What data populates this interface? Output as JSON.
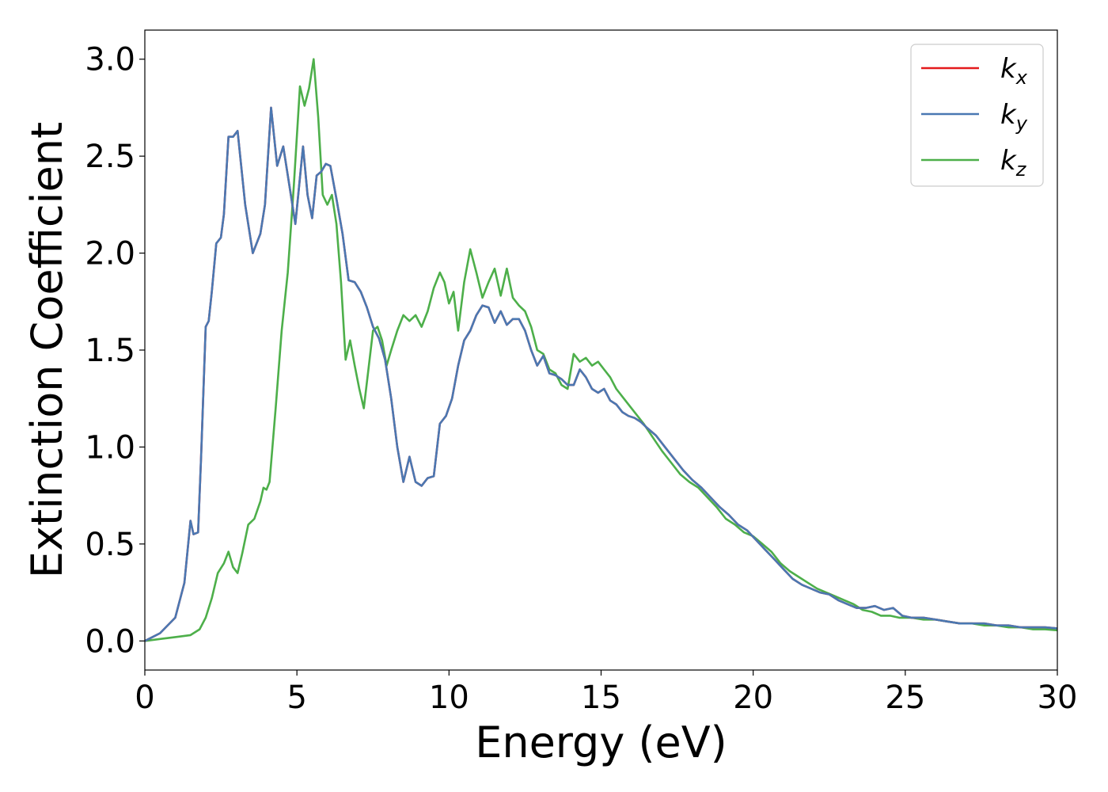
{
  "chart_data": {
    "type": "line",
    "xlabel": "Energy (eV)",
    "ylabel": "Extinction Coefficient",
    "xlim": [
      0,
      30
    ],
    "ylim": [
      -0.15,
      3.15
    ],
    "xticks": [
      0,
      5,
      10,
      15,
      20,
      25,
      30
    ],
    "xtick_labels": [
      "0",
      "5",
      "10",
      "15",
      "20",
      "25",
      "30"
    ],
    "yticks": [
      0.0,
      0.5,
      1.0,
      1.5,
      2.0,
      2.5,
      3.0
    ],
    "ytick_labels": [
      "0.0",
      "0.5",
      "1.0",
      "1.5",
      "2.0",
      "2.5",
      "3.0"
    ],
    "grid": false,
    "legend_position": "top-right",
    "series": [
      {
        "name": "k_x",
        "legend_base": "k",
        "legend_sub": "x",
        "color": "#e41a1c",
        "x": [
          0,
          0.5,
          1.0,
          1.3,
          1.5,
          1.6,
          1.75,
          1.85,
          2.0,
          2.1,
          2.2,
          2.35,
          2.5,
          2.6,
          2.75,
          2.9,
          3.05,
          3.3,
          3.55,
          3.8,
          3.95,
          4.15,
          4.35,
          4.55,
          4.75,
          4.95,
          5.2,
          5.35,
          5.5,
          5.65,
          5.8,
          5.95,
          6.1,
          6.3,
          6.5,
          6.7,
          6.9,
          7.1,
          7.3,
          7.5,
          7.7,
          7.9,
          8.1,
          8.3,
          8.5,
          8.7,
          8.9,
          9.1,
          9.3,
          9.5,
          9.7,
          9.9,
          10.1,
          10.3,
          10.5,
          10.7,
          10.9,
          11.1,
          11.3,
          11.5,
          11.7,
          11.9,
          12.1,
          12.3,
          12.5,
          12.7,
          12.9,
          13.1,
          13.3,
          13.5,
          13.7,
          13.9,
          14.1,
          14.3,
          14.5,
          14.7,
          14.9,
          15.1,
          15.3,
          15.5,
          15.7,
          15.9,
          16.1,
          16.3,
          16.5,
          16.8,
          17.1,
          17.4,
          17.7,
          18.0,
          18.3,
          18.6,
          18.9,
          19.2,
          19.5,
          19.8,
          20.1,
          20.4,
          20.7,
          21.0,
          21.3,
          21.6,
          21.9,
          22.2,
          22.5,
          22.8,
          23.1,
          23.4,
          23.7,
          24.0,
          24.3,
          24.6,
          24.9,
          25.2,
          25.6,
          26.0,
          26.4,
          26.8,
          27.2,
          27.6,
          28.0,
          28.4,
          28.8,
          29.2,
          29.6,
          30.0
        ],
        "y": [
          0,
          0.04,
          0.12,
          0.3,
          0.62,
          0.55,
          0.56,
          0.95,
          1.62,
          1.65,
          1.8,
          2.05,
          2.08,
          2.2,
          2.6,
          2.6,
          2.63,
          2.25,
          2.0,
          2.1,
          2.25,
          2.75,
          2.45,
          2.55,
          2.35,
          2.15,
          2.55,
          2.3,
          2.18,
          2.4,
          2.42,
          2.46,
          2.45,
          2.28,
          2.1,
          1.86,
          1.85,
          1.8,
          1.72,
          1.62,
          1.56,
          1.45,
          1.25,
          1.0,
          0.82,
          0.95,
          0.82,
          0.8,
          0.84,
          0.85,
          1.12,
          1.16,
          1.25,
          1.42,
          1.55,
          1.6,
          1.68,
          1.73,
          1.72,
          1.64,
          1.7,
          1.63,
          1.66,
          1.66,
          1.6,
          1.5,
          1.42,
          1.47,
          1.38,
          1.37,
          1.35,
          1.32,
          1.32,
          1.4,
          1.36,
          1.3,
          1.28,
          1.3,
          1.24,
          1.22,
          1.18,
          1.16,
          1.15,
          1.13,
          1.1,
          1.06,
          1.0,
          0.94,
          0.88,
          0.83,
          0.79,
          0.74,
          0.69,
          0.65,
          0.6,
          0.57,
          0.52,
          0.47,
          0.42,
          0.37,
          0.32,
          0.29,
          0.27,
          0.25,
          0.24,
          0.21,
          0.19,
          0.17,
          0.17,
          0.18,
          0.16,
          0.17,
          0.13,
          0.12,
          0.12,
          0.11,
          0.1,
          0.09,
          0.09,
          0.09,
          0.08,
          0.08,
          0.07,
          0.07,
          0.07,
          0.065
        ]
      },
      {
        "name": "k_y",
        "legend_base": "k",
        "legend_sub": "y",
        "color": "#4a78b2",
        "x": [
          0,
          0.5,
          1.0,
          1.3,
          1.5,
          1.6,
          1.75,
          1.85,
          2.0,
          2.1,
          2.2,
          2.35,
          2.5,
          2.6,
          2.75,
          2.9,
          3.05,
          3.3,
          3.55,
          3.8,
          3.95,
          4.15,
          4.35,
          4.55,
          4.75,
          4.95,
          5.2,
          5.35,
          5.5,
          5.65,
          5.8,
          5.95,
          6.1,
          6.3,
          6.5,
          6.7,
          6.9,
          7.1,
          7.3,
          7.5,
          7.7,
          7.9,
          8.1,
          8.3,
          8.5,
          8.7,
          8.9,
          9.1,
          9.3,
          9.5,
          9.7,
          9.9,
          10.1,
          10.3,
          10.5,
          10.7,
          10.9,
          11.1,
          11.3,
          11.5,
          11.7,
          11.9,
          12.1,
          12.3,
          12.5,
          12.7,
          12.9,
          13.1,
          13.3,
          13.5,
          13.7,
          13.9,
          14.1,
          14.3,
          14.5,
          14.7,
          14.9,
          15.1,
          15.3,
          15.5,
          15.7,
          15.9,
          16.1,
          16.3,
          16.5,
          16.8,
          17.1,
          17.4,
          17.7,
          18.0,
          18.3,
          18.6,
          18.9,
          19.2,
          19.5,
          19.8,
          20.1,
          20.4,
          20.7,
          21.0,
          21.3,
          21.6,
          21.9,
          22.2,
          22.5,
          22.8,
          23.1,
          23.4,
          23.7,
          24.0,
          24.3,
          24.6,
          24.9,
          25.2,
          25.6,
          26.0,
          26.4,
          26.8,
          27.2,
          27.6,
          28.0,
          28.4,
          28.8,
          29.2,
          29.6,
          30.0
        ],
        "y": [
          0,
          0.04,
          0.12,
          0.3,
          0.62,
          0.55,
          0.56,
          0.95,
          1.62,
          1.65,
          1.8,
          2.05,
          2.08,
          2.2,
          2.6,
          2.6,
          2.63,
          2.25,
          2.0,
          2.1,
          2.25,
          2.75,
          2.45,
          2.55,
          2.35,
          2.15,
          2.55,
          2.3,
          2.18,
          2.4,
          2.42,
          2.46,
          2.45,
          2.28,
          2.1,
          1.86,
          1.85,
          1.8,
          1.72,
          1.62,
          1.56,
          1.45,
          1.25,
          1.0,
          0.82,
          0.95,
          0.82,
          0.8,
          0.84,
          0.85,
          1.12,
          1.16,
          1.25,
          1.42,
          1.55,
          1.6,
          1.68,
          1.73,
          1.72,
          1.64,
          1.7,
          1.63,
          1.66,
          1.66,
          1.6,
          1.5,
          1.42,
          1.47,
          1.38,
          1.37,
          1.35,
          1.32,
          1.32,
          1.4,
          1.36,
          1.3,
          1.28,
          1.3,
          1.24,
          1.22,
          1.18,
          1.16,
          1.15,
          1.13,
          1.1,
          1.06,
          1.0,
          0.94,
          0.88,
          0.83,
          0.79,
          0.74,
          0.69,
          0.65,
          0.6,
          0.57,
          0.52,
          0.47,
          0.42,
          0.37,
          0.32,
          0.29,
          0.27,
          0.25,
          0.24,
          0.21,
          0.19,
          0.17,
          0.17,
          0.18,
          0.16,
          0.17,
          0.13,
          0.12,
          0.12,
          0.11,
          0.1,
          0.09,
          0.09,
          0.09,
          0.08,
          0.08,
          0.07,
          0.07,
          0.07,
          0.065
        ]
      },
      {
        "name": "k_z",
        "legend_base": "k",
        "legend_sub": "z",
        "color": "#4daf4a",
        "x": [
          0,
          0.5,
          1.0,
          1.5,
          1.8,
          2.0,
          2.2,
          2.4,
          2.6,
          2.75,
          2.9,
          3.05,
          3.2,
          3.4,
          3.6,
          3.8,
          3.9,
          4.0,
          4.1,
          4.3,
          4.5,
          4.7,
          4.9,
          5.1,
          5.25,
          5.4,
          5.55,
          5.7,
          5.85,
          6.0,
          6.15,
          6.3,
          6.45,
          6.6,
          6.75,
          6.9,
          7.05,
          7.2,
          7.35,
          7.5,
          7.65,
          7.8,
          7.95,
          8.1,
          8.3,
          8.5,
          8.7,
          8.9,
          9.1,
          9.3,
          9.5,
          9.7,
          9.85,
          10.0,
          10.15,
          10.3,
          10.5,
          10.7,
          10.9,
          11.1,
          11.3,
          11.5,
          11.7,
          11.9,
          12.1,
          12.3,
          12.5,
          12.7,
          12.9,
          13.1,
          13.3,
          13.5,
          13.7,
          13.9,
          14.1,
          14.3,
          14.5,
          14.7,
          14.9,
          15.1,
          15.3,
          15.5,
          15.8,
          16.1,
          16.4,
          16.7,
          17.0,
          17.3,
          17.6,
          17.9,
          18.2,
          18.5,
          18.8,
          19.1,
          19.4,
          19.7,
          20.0,
          20.3,
          20.6,
          20.9,
          21.2,
          21.5,
          21.8,
          22.1,
          22.4,
          22.7,
          23.0,
          23.3,
          23.6,
          23.9,
          24.2,
          24.5,
          24.8,
          25.2,
          25.6,
          26.0,
          26.4,
          26.8,
          27.2,
          27.6,
          28.0,
          28.4,
          28.8,
          29.2,
          29.6,
          30.0
        ],
        "y": [
          0,
          0.01,
          0.02,
          0.03,
          0.06,
          0.12,
          0.22,
          0.35,
          0.4,
          0.46,
          0.38,
          0.35,
          0.45,
          0.6,
          0.63,
          0.72,
          0.79,
          0.78,
          0.82,
          1.2,
          1.6,
          1.9,
          2.35,
          2.86,
          2.76,
          2.85,
          3.0,
          2.7,
          2.3,
          2.25,
          2.3,
          2.15,
          1.85,
          1.45,
          1.55,
          1.42,
          1.3,
          1.2,
          1.4,
          1.6,
          1.62,
          1.55,
          1.42,
          1.5,
          1.6,
          1.68,
          1.65,
          1.68,
          1.62,
          1.7,
          1.82,
          1.9,
          1.85,
          1.74,
          1.8,
          1.6,
          1.85,
          2.02,
          1.9,
          1.77,
          1.85,
          1.92,
          1.78,
          1.92,
          1.77,
          1.73,
          1.7,
          1.62,
          1.5,
          1.48,
          1.4,
          1.38,
          1.32,
          1.3,
          1.48,
          1.44,
          1.46,
          1.42,
          1.44,
          1.4,
          1.36,
          1.3,
          1.24,
          1.18,
          1.12,
          1.05,
          0.98,
          0.92,
          0.86,
          0.82,
          0.79,
          0.74,
          0.69,
          0.63,
          0.6,
          0.56,
          0.54,
          0.5,
          0.46,
          0.4,
          0.36,
          0.33,
          0.3,
          0.27,
          0.25,
          0.23,
          0.21,
          0.19,
          0.16,
          0.15,
          0.13,
          0.13,
          0.12,
          0.12,
          0.11,
          0.11,
          0.1,
          0.09,
          0.09,
          0.08,
          0.08,
          0.07,
          0.07,
          0.06,
          0.06,
          0.055
        ]
      }
    ]
  }
}
